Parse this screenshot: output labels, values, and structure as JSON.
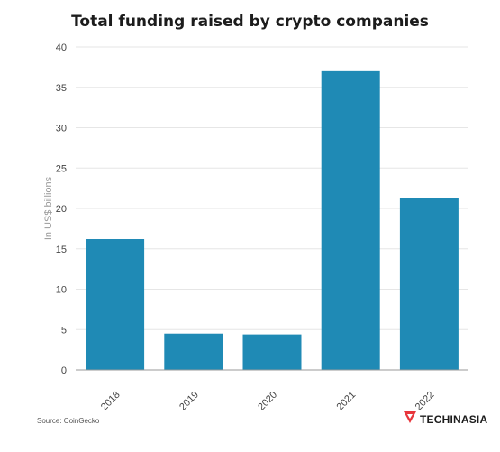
{
  "chart_data": {
    "type": "bar",
    "title": "Total funding raised by crypto companies",
    "xlabel": "",
    "ylabel": "In US$ billions",
    "categories": [
      "2018",
      "2019",
      "2020",
      "2021",
      "2022"
    ],
    "values": [
      16.2,
      4.5,
      4.4,
      37.0,
      21.3
    ],
    "ylim": [
      0,
      40
    ],
    "yticks": [
      0,
      5,
      10,
      15,
      20,
      25,
      30,
      35,
      40
    ],
    "grid": true,
    "legend": "none",
    "colors": {
      "bar": "#1f8ab5",
      "grid": "#e6e6e6",
      "axis": "#999999",
      "tick_text": "#444444"
    }
  },
  "footer": {
    "source": "Source: CoinGecko",
    "brand": "TECHINASIA",
    "brand_icon": "techinasia-logo-icon",
    "brand_color": "#e8363c"
  }
}
